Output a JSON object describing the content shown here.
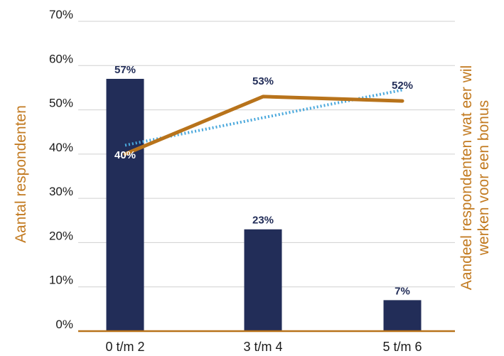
{
  "chart_data": {
    "type": "bar",
    "title": "",
    "categories": [
      "0 t/m 2",
      "3 t/m 4",
      "5 t/m 6"
    ],
    "ylim": [
      0,
      70
    ],
    "yticks": [
      "0%",
      "10%",
      "20%",
      "30%",
      "40%",
      "50%",
      "60%",
      "70%"
    ],
    "ylabel_left": "Aantal respondenten",
    "ylabel_right": "Aandeel respondenten wat eer wil werken voor een bonus",
    "ylabel_right_lines": [
      "Aandeel respondenten wat eer wil",
      "werken voor een bonus"
    ],
    "grid": true,
    "legend": "none",
    "series": [
      {
        "kind": "bar",
        "values": [
          57,
          23,
          7
        ],
        "labels": [
          "57%",
          "23%",
          "7%"
        ]
      },
      {
        "kind": "line",
        "values": [
          40,
          53,
          52
        ],
        "labels": [
          "40%",
          "53%",
          "52%"
        ]
      },
      {
        "kind": "trendline",
        "values": [
          42,
          48,
          54.5
        ]
      }
    ]
  },
  "colors": {
    "bar": "#222d58",
    "line": "#b8731b",
    "trend": "#4aa8dc",
    "axis_title": "#c27a20",
    "grid": "#d0d0d0",
    "bar_label": "#222d58",
    "line_label_on_bar": "#ffffff",
    "line_label": "#222d58"
  }
}
